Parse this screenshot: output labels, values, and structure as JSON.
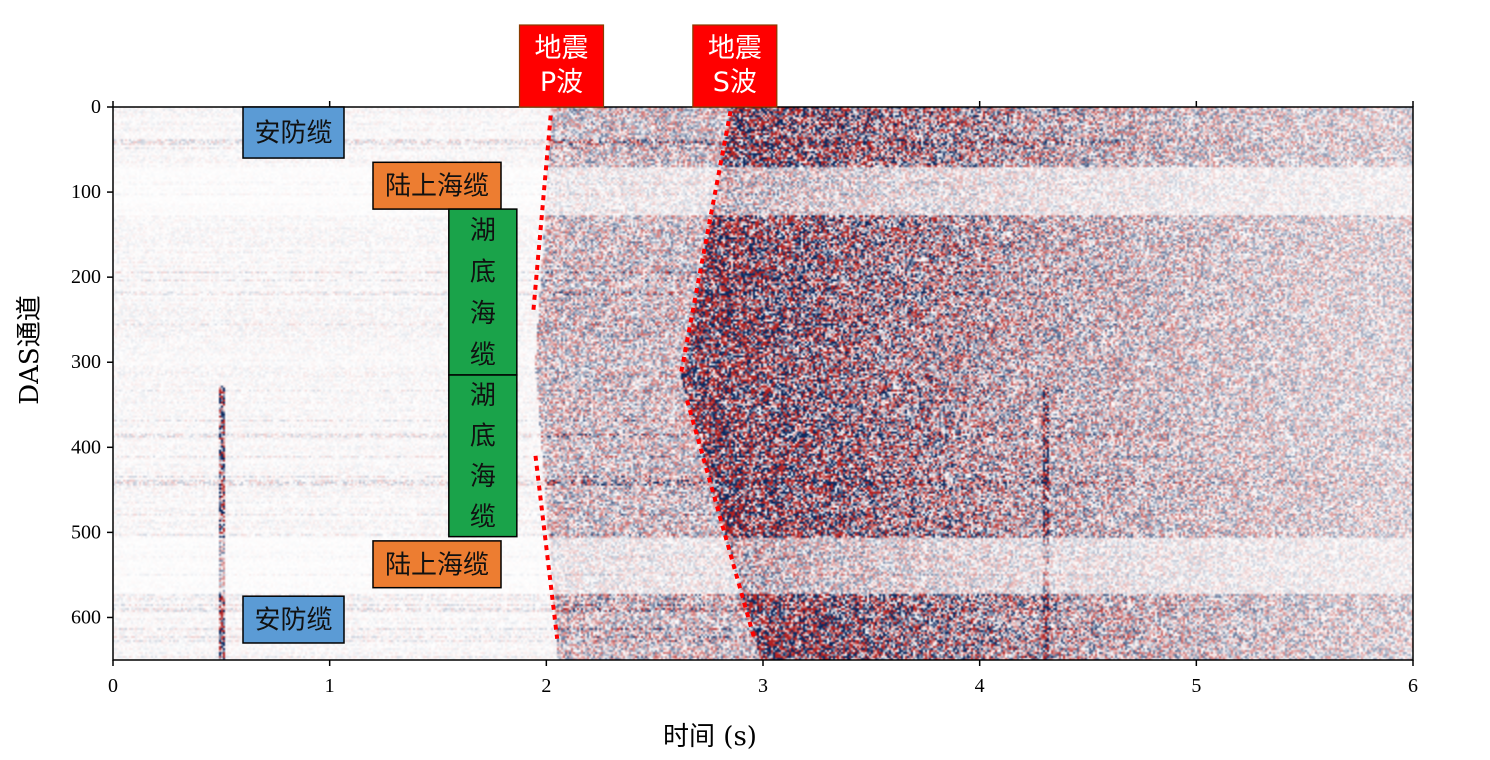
{
  "chart_data": {
    "type": "heatmap",
    "title": "",
    "xlabel": "时间 (s)",
    "ylabel": "DAS通道",
    "xlim": [
      0,
      6
    ],
    "ylim": [
      650,
      0
    ],
    "x_ticks": [
      0,
      1,
      2,
      3,
      4,
      5,
      6
    ],
    "y_ticks": [
      0,
      100,
      200,
      300,
      400,
      500,
      600
    ],
    "x_tick_labels": [
      "0",
      "1",
      "2",
      "3",
      "4",
      "5",
      "6"
    ],
    "y_tick_labels": [
      "0",
      "100",
      "200",
      "300",
      "400",
      "500",
      "600"
    ],
    "colormap": [
      "#08306b",
      "#ffffff",
      "#c0392b"
    ],
    "grid": false,
    "region_labels": [
      {
        "text": "安防缆",
        "color": "#5b9bd5",
        "channels": [
          0,
          60
        ],
        "x": 0.6
      },
      {
        "text": "陆上海缆",
        "color": "#ed7d31",
        "channels": [
          65,
          120
        ],
        "x": 1.2
      },
      {
        "text": "湖底海缆",
        "color": "#1aa34a",
        "channels": [
          120,
          315
        ],
        "x": 1.55
      },
      {
        "text": "湖底海缆",
        "color": "#1aa34a",
        "channels": [
          315,
          505
        ],
        "x": 1.55
      },
      {
        "text": "陆上海缆",
        "color": "#ed7d31",
        "channels": [
          510,
          565
        ],
        "x": 1.2
      },
      {
        "text": "安防缆",
        "color": "#5b9bd5",
        "channels": [
          575,
          630
        ],
        "x": 0.6
      }
    ],
    "phase_labels": [
      {
        "lines": [
          "地震",
          "P波"
        ],
        "x": 2.07,
        "color": "#ff0000"
      },
      {
        "lines": [
          "地震",
          "S波"
        ],
        "x": 2.87,
        "color": "#ff0000"
      }
    ],
    "phase_picks": {
      "color": "#ff0000",
      "P": [
        {
          "x": [
            2.02,
            1.94
          ],
          "y": [
            10,
            240
          ]
        },
        {
          "x": [
            1.95,
            2.05
          ],
          "y": [
            410,
            625
          ]
        }
      ],
      "S": [
        {
          "x": [
            2.85,
            2.62
          ],
          "y": [
            5,
            315
          ]
        },
        {
          "x": [
            2.65,
            2.96
          ],
          "y": [
            345,
            625
          ]
        }
      ]
    }
  }
}
